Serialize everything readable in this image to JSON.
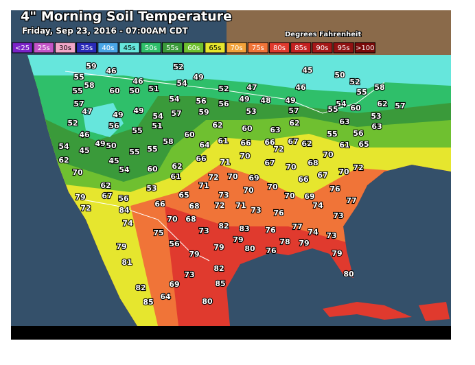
{
  "header": {
    "title": "4\" Morning Soil Temperature",
    "subtitle": "Friday, Sep 23, 2016 - 07:00AM CDT",
    "units": "Degrees Fahrenheit"
  },
  "legend": [
    {
      "label": "<25",
      "color": "#7a22c8"
    },
    {
      "label": "25s",
      "color": "#c455c8"
    },
    {
      "label": "30s",
      "color": "#f2a6c8"
    },
    {
      "label": "35s",
      "color": "#2a2ab8"
    },
    {
      "label": "40s",
      "color": "#4aa6e6"
    },
    {
      "label": "45s",
      "color": "#66e6dc"
    },
    {
      "label": "50s",
      "color": "#2fbf6a"
    },
    {
      "label": "55s",
      "color": "#3a9a3a"
    },
    {
      "label": "60s",
      "color": "#6fc030"
    },
    {
      "label": "65s",
      "color": "#e6e62e"
    },
    {
      "label": "70s",
      "color": "#f2a23a"
    },
    {
      "label": "75s",
      "color": "#f07438"
    },
    {
      "label": "80s",
      "color": "#e03a2e"
    },
    {
      "label": "85s",
      "color": "#c42020"
    },
    {
      "label": "90s",
      "color": "#a61818"
    },
    {
      "label": "95s",
      "color": "#901212"
    },
    {
      "label": ">100",
      "color": "#7a0a0a"
    }
  ],
  "stations": [
    59,
    46,
    52,
    45,
    50,
    55,
    58,
    55,
    57,
    47,
    52,
    46,
    54,
    62,
    70,
    60,
    50,
    46,
    51,
    54,
    49,
    52,
    47,
    46,
    52,
    55,
    58,
    57,
    62,
    54,
    56,
    56,
    49,
    48,
    49,
    54,
    55,
    60,
    53,
    63,
    49,
    49,
    57,
    54,
    59,
    53,
    57,
    62,
    63,
    56,
    55,
    51,
    62,
    60,
    63,
    55,
    56,
    49,
    50,
    45,
    55,
    55,
    58,
    60,
    64,
    61,
    66,
    66,
    72,
    67,
    62,
    61,
    65,
    45,
    54,
    60,
    62,
    66,
    71,
    70,
    67,
    70,
    68,
    70,
    72,
    70,
    61,
    71,
    72,
    70,
    69,
    66,
    67,
    70,
    62,
    53,
    65,
    73,
    70,
    70,
    69,
    76,
    77,
    79,
    67,
    56,
    74,
    73,
    72,
    84,
    66,
    68,
    72,
    71,
    73,
    76,
    70,
    68,
    82,
    83,
    76,
    77,
    74,
    73,
    74,
    73,
    75,
    56,
    79,
    79,
    80,
    76,
    78,
    79,
    79,
    79,
    81,
    79,
    82,
    73,
    80,
    85,
    69,
    82,
    85,
    64,
    80
  ]
}
